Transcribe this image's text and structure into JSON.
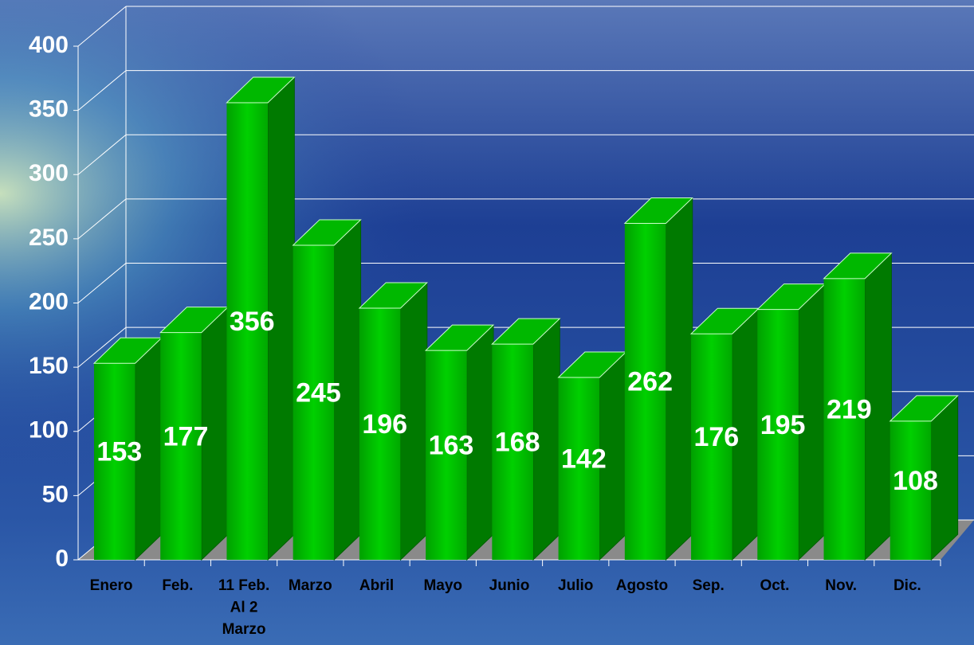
{
  "chart_data": {
    "type": "bar",
    "categories": [
      "Enero",
      "Feb.",
      "11 Feb.\nAl 2\nMarzo",
      "Marzo",
      "Abril",
      "Mayo",
      "Junio",
      "Julio",
      "Agosto",
      "Sep.",
      "Oct.",
      "Nov.",
      "Dic."
    ],
    "values": [
      153,
      177,
      356,
      245,
      196,
      163,
      168,
      142,
      262,
      176,
      195,
      219,
      108
    ],
    "color": "#00b800",
    "ylim": [
      0,
      400
    ],
    "yticks": [
      0,
      50,
      100,
      150,
      200,
      250,
      300,
      350,
      400
    ],
    "grid": true
  }
}
